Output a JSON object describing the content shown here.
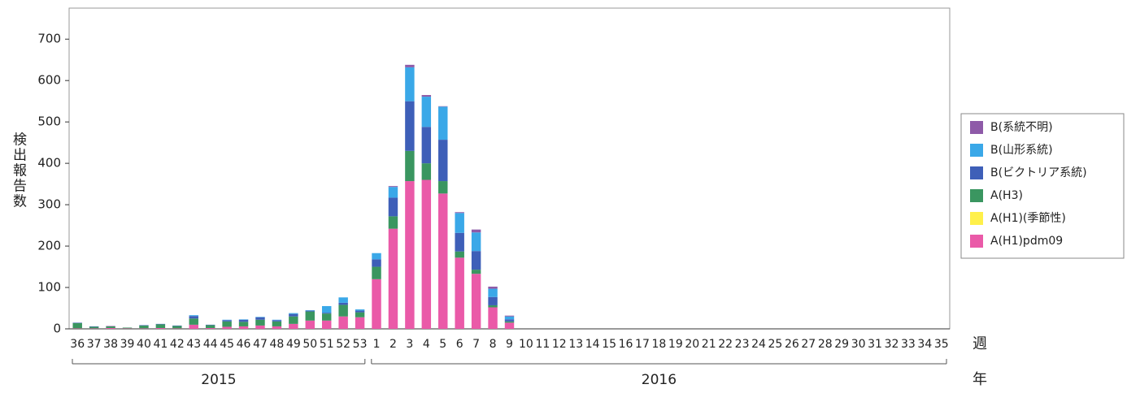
{
  "chart_data": {
    "type": "stacked_bar",
    "ylabel": "検出報告数",
    "xlabel": "週",
    "year_label": "年",
    "years": [
      "2015",
      "2016"
    ],
    "categories": [
      "36",
      "37",
      "38",
      "39",
      "40",
      "41",
      "42",
      "43",
      "44",
      "45",
      "46",
      "47",
      "48",
      "49",
      "50",
      "51",
      "52",
      "53",
      "1",
      "2",
      "3",
      "4",
      "5",
      "6",
      "7",
      "8",
      "9",
      "10",
      "11",
      "12",
      "13",
      "14",
      "15",
      "16",
      "17",
      "18",
      "19",
      "20",
      "21",
      "22",
      "23",
      "24",
      "25",
      "26",
      "27",
      "28",
      "29",
      "30",
      "31",
      "32",
      "33",
      "34",
      "35"
    ],
    "ylim": [
      0,
      775
    ],
    "yticks": [
      0,
      100,
      200,
      300,
      400,
      500,
      600,
      700
    ],
    "series": [
      {
        "name": "A(H1)pdm09",
        "color": "#ea5aa8",
        "values": [
          1,
          1,
          2,
          1,
          1,
          2,
          1,
          10,
          2,
          5,
          6,
          8,
          6,
          12,
          20,
          20,
          30,
          28,
          120,
          242,
          357,
          360,
          327,
          172,
          133,
          52,
          15,
          0,
          0,
          0,
          0,
          0,
          0,
          0,
          0,
          0,
          0,
          0,
          0,
          0,
          0,
          0,
          0,
          0,
          0,
          0,
          0,
          0,
          0,
          0,
          0,
          0,
          0
        ]
      },
      {
        "name": "A(H1)(季節性)",
        "color": "#fff04a",
        "values": [
          0,
          0,
          0,
          0,
          0,
          0,
          0,
          0,
          0,
          0,
          0,
          0,
          0,
          0,
          0,
          0,
          0,
          0,
          0,
          0,
          0,
          0,
          0,
          0,
          0,
          0,
          0,
          0,
          0,
          0,
          0,
          0,
          0,
          0,
          0,
          0,
          0,
          0,
          0,
          0,
          0,
          0,
          0,
          0,
          0,
          0,
          0,
          0,
          0,
          0,
          0,
          0,
          0
        ]
      },
      {
        "name": "A(H3)",
        "color": "#3a9660",
        "values": [
          13,
          4,
          4,
          2,
          7,
          9,
          6,
          15,
          7,
          13,
          11,
          14,
          12,
          18,
          22,
          17,
          28,
          12,
          30,
          30,
          73,
          40,
          30,
          15,
          10,
          5,
          3,
          0,
          0,
          0,
          0,
          0,
          0,
          0,
          0,
          0,
          0,
          0,
          0,
          0,
          0,
          0,
          0,
          0,
          0,
          0,
          0,
          0,
          0,
          0,
          0,
          0,
          0
        ]
      },
      {
        "name": "B(ビクトリア系統)",
        "color": "#3e5fb8",
        "values": [
          1,
          1,
          0,
          0,
          1,
          1,
          1,
          6,
          1,
          3,
          5,
          6,
          3,
          6,
          2,
          2,
          5,
          4,
          18,
          45,
          120,
          88,
          100,
          45,
          45,
          20,
          5,
          0,
          0,
          0,
          0,
          0,
          0,
          0,
          0,
          0,
          0,
          0,
          0,
          0,
          0,
          0,
          0,
          0,
          0,
          0,
          0,
          0,
          0,
          0,
          0,
          0,
          0
        ]
      },
      {
        "name": "B(山形系統)",
        "color": "#3aa8e8",
        "values": [
          0,
          0,
          0,
          0,
          0,
          0,
          0,
          2,
          0,
          1,
          1,
          1,
          1,
          2,
          1,
          16,
          13,
          3,
          15,
          26,
          82,
          73,
          80,
          48,
          45,
          20,
          7,
          0,
          0,
          0,
          0,
          0,
          0,
          0,
          0,
          0,
          0,
          0,
          0,
          0,
          0,
          0,
          0,
          0,
          0,
          0,
          0,
          0,
          0,
          0,
          0,
          0,
          0
        ]
      },
      {
        "name": "B(系統不明)",
        "color": "#8e5aa8",
        "values": [
          0,
          0,
          1,
          0,
          0,
          0,
          0,
          0,
          0,
          0,
          0,
          0,
          0,
          0,
          0,
          0,
          0,
          0,
          0,
          2,
          6,
          4,
          1,
          2,
          7,
          5,
          2,
          0,
          0,
          0,
          0,
          0,
          0,
          0,
          0,
          0,
          0,
          0,
          0,
          0,
          0,
          0,
          0,
          0,
          0,
          0,
          0,
          0,
          0,
          0,
          0,
          0,
          0
        ]
      }
    ]
  }
}
